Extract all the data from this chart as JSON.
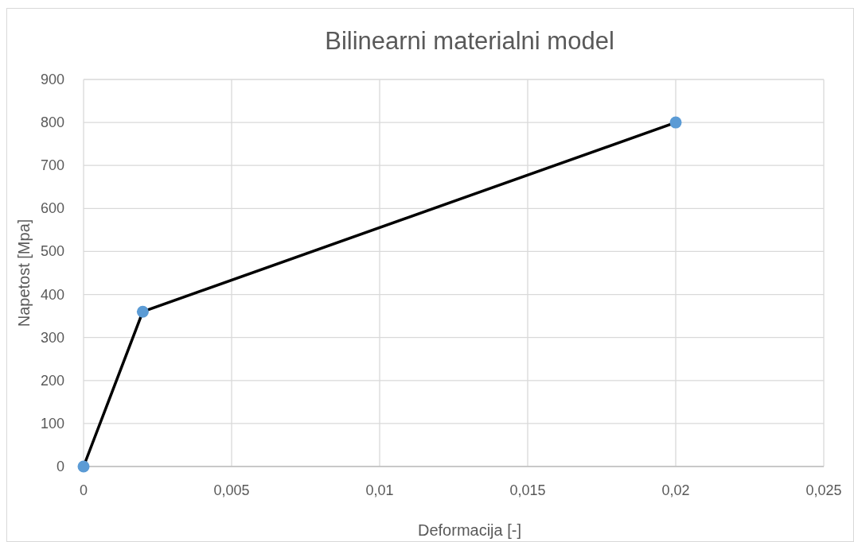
{
  "chart_data": {
    "type": "line",
    "title": "Bilinearni materialni model",
    "xlabel": "Deformacija [-]",
    "ylabel": "Napetost [Mpa]",
    "x": [
      0,
      0.002,
      0.02
    ],
    "series": [
      {
        "color": "#000000",
        "values": [
          0,
          360,
          800
        ],
        "marker": "none"
      },
      {
        "type": "scatter",
        "color": "#5b9bd5",
        "values": [
          0,
          360,
          800
        ],
        "marker": "circle"
      }
    ],
    "xlim": [
      0,
      0.025
    ],
    "xticks": [
      0,
      {
        "value": 0.005,
        "label": "0,005"
      },
      {
        "value": 0.01,
        "label": "0,01"
      },
      {
        "value": 0.015,
        "label": "0,015"
      },
      {
        "value": 0.02,
        "label": "0,02"
      },
      {
        "value": 0.025,
        "label": "0,025"
      }
    ],
    "ylim": [
      0,
      900
    ],
    "yticks": [
      0,
      100,
      200,
      300,
      400,
      500,
      600,
      700,
      800,
      900
    ],
    "grid": true
  }
}
